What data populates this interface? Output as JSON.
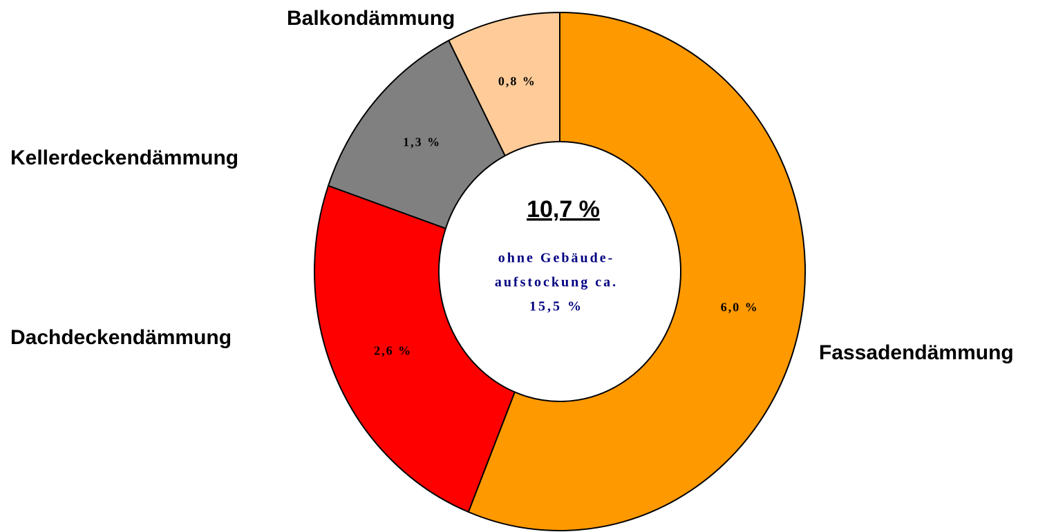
{
  "chart_data": {
    "type": "donut",
    "categories": [
      "Fassadendämmung",
      "Dachdeckendämmung",
      "Kellerdeckendämmung",
      "Balkondämmung"
    ],
    "values": [
      6.0,
      2.6,
      1.3,
      0.8
    ],
    "value_labels": [
      "6,0 %",
      "2,6 %",
      "1,3 %",
      "0,8 %"
    ],
    "colors": [
      "#ff9900",
      "#ff0000",
      "#808080",
      "#ffcc99"
    ],
    "annotations": [
      "10,7 %",
      "ohne Gebäude-",
      "aufstockung ca.",
      "15,5 %"
    ]
  }
}
